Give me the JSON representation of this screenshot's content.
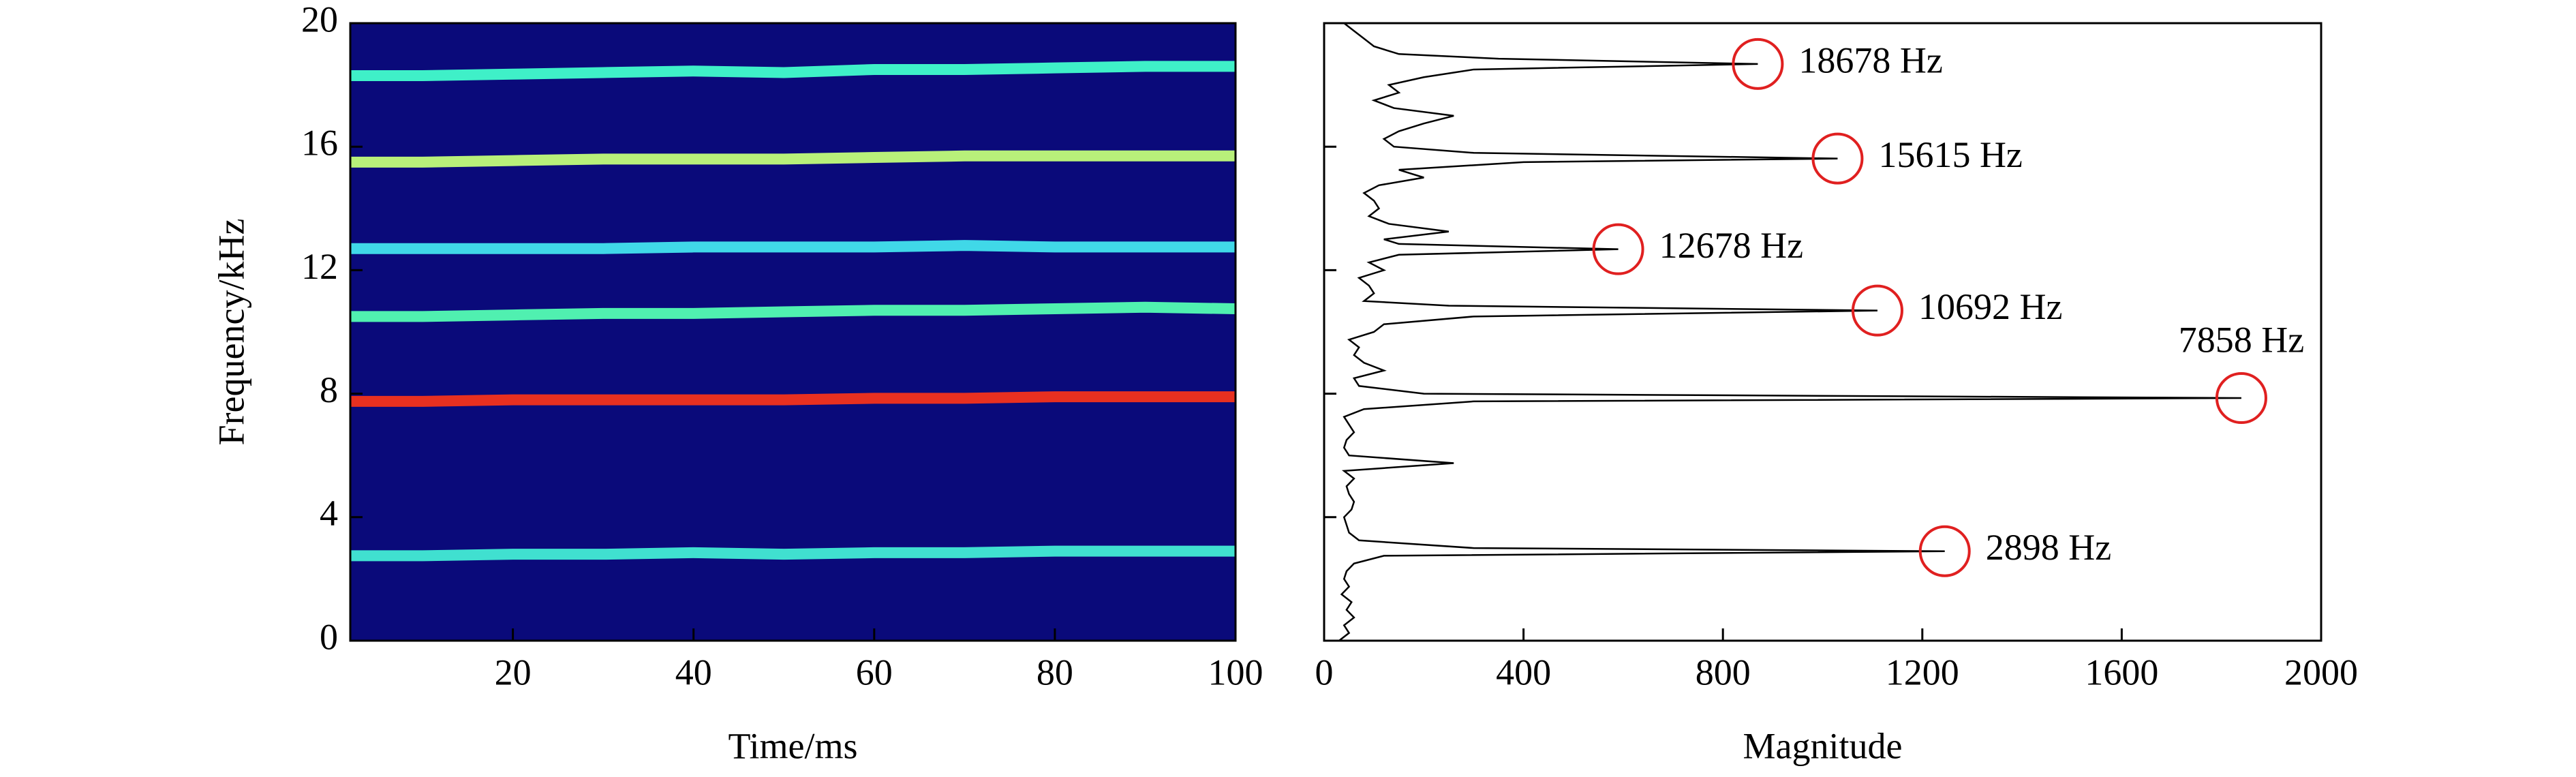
{
  "chart_data": [
    {
      "type": "spectrogram",
      "x_label": "Time/ms",
      "y_label": "Frequency/kHz",
      "background": "#0a0a7a",
      "xlim": [
        2,
        100
      ],
      "xticks": [
        20,
        40,
        60,
        80,
        100
      ],
      "ylim": [
        0,
        20
      ],
      "yticks": [
        0,
        4,
        8,
        12,
        16,
        20
      ],
      "x": [
        2,
        10,
        20,
        30,
        40,
        50,
        60,
        70,
        80,
        90,
        100
      ],
      "series": [
        {
          "color": "#3ff0c8",
          "values": [
            18.3,
            18.3,
            18.35,
            18.4,
            18.45,
            18.4,
            18.5,
            18.5,
            18.55,
            18.6,
            18.6
          ]
        },
        {
          "color": "#b8f07a",
          "values": [
            15.5,
            15.5,
            15.55,
            15.6,
            15.6,
            15.6,
            15.65,
            15.7,
            15.7,
            15.7,
            15.7
          ]
        },
        {
          "color": "#40d8e8",
          "values": [
            12.7,
            12.7,
            12.7,
            12.7,
            12.75,
            12.75,
            12.75,
            12.8,
            12.75,
            12.75,
            12.75
          ]
        },
        {
          "color": "#50f0b0",
          "values": [
            10.5,
            10.5,
            10.55,
            10.6,
            10.6,
            10.65,
            10.7,
            10.7,
            10.75,
            10.8,
            10.75
          ]
        },
        {
          "color": "#e83020",
          "values": [
            7.75,
            7.75,
            7.8,
            7.8,
            7.8,
            7.8,
            7.85,
            7.85,
            7.9,
            7.9,
            7.9
          ]
        },
        {
          "color": "#40e0d0",
          "values": [
            2.75,
            2.75,
            2.8,
            2.8,
            2.85,
            2.8,
            2.85,
            2.85,
            2.9,
            2.9,
            2.9
          ]
        }
      ]
    },
    {
      "type": "spectrum",
      "x_label": "Magnitude",
      "xlim": [
        0,
        2000
      ],
      "xticks": [
        0,
        400,
        800,
        1200,
        1600,
        2000
      ],
      "ylim": [
        0,
        20
      ],
      "yticks": [
        0,
        4,
        8,
        12,
        16,
        20
      ],
      "color": "#000000",
      "marker_color": "#e02020",
      "y": [
        0,
        0.25,
        0.5,
        0.75,
        1,
        1.25,
        1.5,
        1.75,
        2,
        2.25,
        2.5,
        2.75,
        2.898,
        3,
        3.25,
        3.5,
        3.75,
        4,
        4.25,
        4.5,
        4.75,
        5,
        5.25,
        5.5,
        5.75,
        6,
        6.25,
        6.5,
        6.75,
        7,
        7.25,
        7.5,
        7.75,
        7.858,
        8,
        8.25,
        8.5,
        8.75,
        9,
        9.25,
        9.5,
        9.75,
        10,
        10.25,
        10.5,
        10.692,
        10.85,
        11,
        11.25,
        11.5,
        11.75,
        12,
        12.25,
        12.5,
        12.678,
        12.85,
        13,
        13.25,
        13.5,
        13.75,
        14,
        14.25,
        14.5,
        14.75,
        15,
        15.25,
        15.5,
        15.615,
        15.8,
        16,
        16.25,
        16.5,
        16.75,
        17,
        17.25,
        17.5,
        17.75,
        18,
        18.25,
        18.5,
        18.678,
        18.85,
        19,
        19.25,
        19.5,
        19.75,
        20
      ],
      "values": [
        30,
        50,
        40,
        60,
        45,
        55,
        35,
        50,
        40,
        45,
        60,
        120,
        1245,
        300,
        70,
        50,
        45,
        40,
        55,
        60,
        50,
        45,
        60,
        40,
        260,
        50,
        40,
        45,
        60,
        50,
        40,
        80,
        300,
        1840,
        200,
        70,
        60,
        120,
        80,
        60,
        70,
        50,
        100,
        120,
        300,
        1110,
        250,
        80,
        100,
        90,
        70,
        120,
        90,
        150,
        590,
        150,
        120,
        250,
        130,
        90,
        110,
        100,
        80,
        110,
        200,
        150,
        400,
        1030,
        300,
        140,
        120,
        150,
        200,
        260,
        140,
        100,
        150,
        130,
        200,
        300,
        870,
        350,
        150,
        100,
        80,
        60,
        40
      ],
      "peaks": [
        {
          "label": "18678 Hz",
          "frequency": 18.678,
          "magnitude": 870
        },
        {
          "label": "15615 Hz",
          "frequency": 15.615,
          "magnitude": 1030
        },
        {
          "label": "12678 Hz",
          "frequency": 12.678,
          "magnitude": 590
        },
        {
          "label": "10692 Hz",
          "frequency": 10.692,
          "magnitude": 1110
        },
        {
          "label": "7858 Hz",
          "frequency": 7.858,
          "magnitude": 1840
        },
        {
          "label": "2898 Hz",
          "frequency": 2.898,
          "magnitude": 1245
        }
      ]
    }
  ]
}
